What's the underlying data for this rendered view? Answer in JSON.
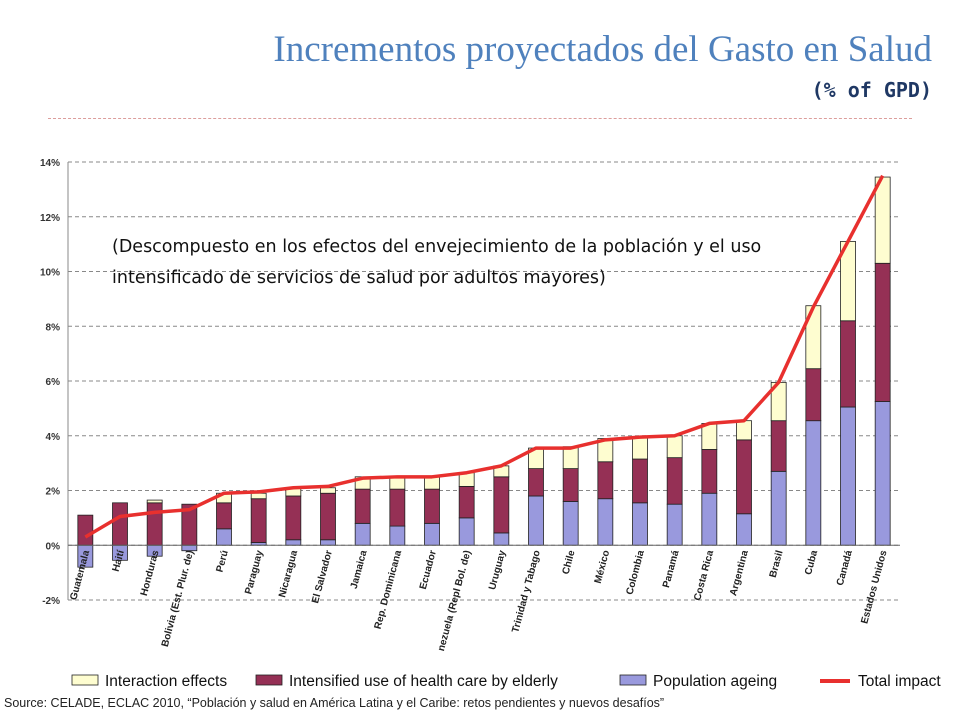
{
  "header": {
    "title": "Incrementos proyectados del Gasto en Salud",
    "subtitle": "(% of GPD)"
  },
  "annotation": "(Descompuesto en los efectos del envejecimiento de la población y el uso intensificado de servicios de salud por adultos mayores)",
  "source": "Source: CELADE, ECLAC 2010, “Población y salud en América Latina y el Caribe: retos pendientes y nuevos desafíos”",
  "colors": {
    "interaction": "#fefdd0",
    "elderly": "#953055",
    "ageing": "#9999dd",
    "total": "#e8302e",
    "grid": "#888888"
  },
  "chart_data": {
    "type": "bar",
    "stacked": true,
    "ylim": [
      -2,
      14
    ],
    "yticks": [
      -2,
      0,
      2,
      4,
      6,
      8,
      10,
      12,
      14
    ],
    "ytick_labels": [
      "-2%",
      "0%",
      "2%",
      "4%",
      "6%",
      "8%",
      "10%",
      "12%",
      "14%"
    ],
    "grid": true,
    "legend_position": "bottom",
    "categories": [
      "Guatemala",
      "Haití",
      "Honduras",
      "Bolivia (Est. Plur. de)",
      "Perú",
      "Paraguay",
      "Nicaragua",
      "El Salvador",
      "Jamaica",
      "Rep. Dominicana",
      "Ecuador",
      "nezuela (Repl Bol. de)",
      "Uruguay",
      "Trinidad y Tabago",
      "Chile",
      "México",
      "Colombia",
      "Panamá",
      "Costa Rica",
      "Argentina",
      "Brasil",
      "Cuba",
      "Canadá",
      "Estados Unidos"
    ],
    "series": [
      {
        "name": "Population ageing",
        "color_key": "ageing",
        "values": [
          -0.8,
          -0.55,
          -0.4,
          -0.2,
          0.6,
          0.1,
          0.2,
          0.2,
          0.8,
          0.7,
          0.8,
          1.0,
          0.45,
          1.8,
          1.6,
          1.7,
          1.55,
          1.5,
          1.9,
          1.15,
          2.7,
          4.55,
          5.05,
          5.25
        ]
      },
      {
        "name": "Intensified use of health care by elderly",
        "color_key": "elderly",
        "values": [
          1.1,
          1.55,
          1.55,
          1.5,
          0.95,
          1.6,
          1.6,
          1.7,
          1.25,
          1.35,
          1.25,
          1.15,
          2.05,
          1.0,
          1.2,
          1.35,
          1.6,
          1.7,
          1.6,
          2.7,
          1.85,
          1.9,
          3.15,
          5.05
        ]
      },
      {
        "name": "Interaction effects",
        "color_key": "interaction",
        "values": [
          0.0,
          0.0,
          0.1,
          0.0,
          0.35,
          0.2,
          0.3,
          0.2,
          0.45,
          0.45,
          0.45,
          0.5,
          0.4,
          0.75,
          0.8,
          0.85,
          0.8,
          0.8,
          0.95,
          0.7,
          1.4,
          2.3,
          2.9,
          3.15
        ]
      },
      {
        "name": "Total impact",
        "type": "line",
        "color_key": "total",
        "values": [
          0.3,
          1.05,
          1.2,
          1.3,
          1.9,
          1.95,
          2.1,
          2.15,
          2.45,
          2.5,
          2.5,
          2.65,
          2.9,
          3.55,
          3.55,
          3.85,
          3.95,
          4.0,
          4.45,
          4.55,
          5.95,
          8.7,
          11.1,
          13.5
        ]
      }
    ]
  }
}
